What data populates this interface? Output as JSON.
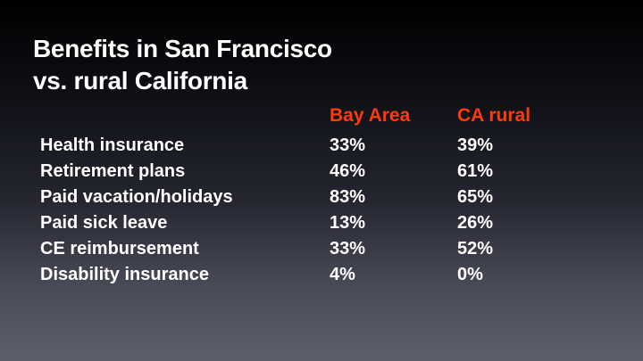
{
  "title": {
    "line1": "Benefits in San Francisco",
    "line2": "vs. rural California"
  },
  "table": {
    "headers": [
      "",
      "Bay Area",
      "CA rural"
    ],
    "header_color": "#ff3a0a",
    "rows": [
      {
        "label": "Health insurance",
        "bay_area": "33%",
        "ca_rural": "39%"
      },
      {
        "label": "Retirement plans",
        "bay_area": "46%",
        "ca_rural": "61%"
      },
      {
        "label": "Paid vacation/holidays",
        "bay_area": "83%",
        "ca_rural": "65%"
      },
      {
        "label": "Paid sick leave",
        "bay_area": "13%",
        "ca_rural": "26%"
      },
      {
        "label": "CE reimbursement",
        "bay_area": "33%",
        "ca_rural": "52%"
      },
      {
        "label": "Disability insurance",
        "bay_area": "4%",
        "ca_rural": "0%"
      }
    ]
  }
}
